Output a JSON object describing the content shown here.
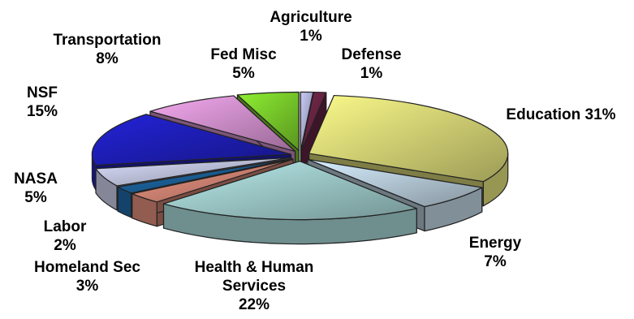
{
  "chart_data": {
    "type": "pie",
    "title": "",
    "style": "3d-exploded",
    "slices": [
      {
        "label": "Agriculture",
        "value": 1,
        "display": "1%",
        "color": "#c9ccf7"
      },
      {
        "label": "Defense",
        "value": 1,
        "display": "1%",
        "color": "#7a2a4f"
      },
      {
        "label": "Education",
        "value": 31,
        "display": "31%",
        "color": "#fbfa8a"
      },
      {
        "label": "Energy",
        "value": 7,
        "display": "7%",
        "color": "#d7efff"
      },
      {
        "label": "Health & Human Services",
        "value": 22,
        "display": "22%",
        "color": "#b9ecec"
      },
      {
        "label": "Homeland Sec",
        "value": 3,
        "display": "3%",
        "color": "#f49a86"
      },
      {
        "label": "Labor",
        "value": 2,
        "display": "2%",
        "color": "#1f6fb0"
      },
      {
        "label": "NASA",
        "value": 5,
        "display": "5%",
        "color": "#dde1ff"
      },
      {
        "label": "NSF",
        "value": 15,
        "display": "15%",
        "color": "#2323d8"
      },
      {
        "label": "Transportation",
        "value": 8,
        "display": "8%",
        "color": "#f5a9f0"
      },
      {
        "label": "Fed Misc",
        "value": 5,
        "display": "5%",
        "color": "#8ff032"
      }
    ]
  },
  "labels": {
    "agriculture": {
      "name": "Agriculture",
      "pct": "1%"
    },
    "defense": {
      "name": "Defense",
      "pct": "1%"
    },
    "education": {
      "name": "Education 31%"
    },
    "energy": {
      "name": "Energy",
      "pct": "7%"
    },
    "hhs": {
      "line1": "Health & Human",
      "line2": "Services",
      "pct": "22%"
    },
    "homeland": {
      "name": "Homeland Sec",
      "pct": "3%"
    },
    "labor": {
      "name": "Labor",
      "pct": "2%"
    },
    "nasa": {
      "name": "NASA",
      "pct": "5%"
    },
    "nsf": {
      "name": "NSF",
      "pct": "15%"
    },
    "transportation": {
      "name": "Transportation",
      "pct": "8%"
    },
    "fedmisc": {
      "name": "Fed Misc",
      "pct": "5%"
    }
  }
}
